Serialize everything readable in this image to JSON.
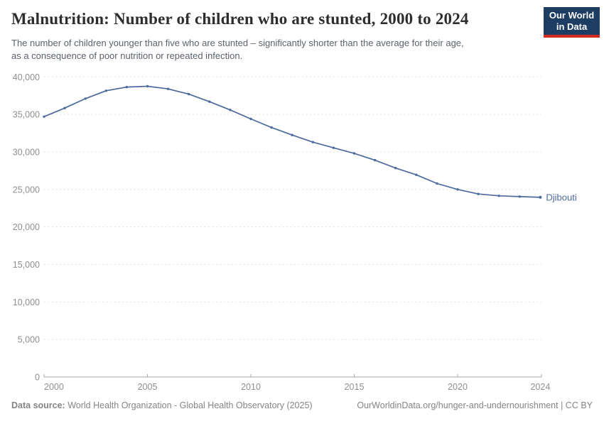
{
  "header": {
    "title": "Malnutrition: Number of children who are stunted, 2000 to 2024",
    "subtitle_line1": "The number of children younger than five who are stunted – significantly shorter than the average for their age,",
    "subtitle_line2": "as a consequence of poor nutrition or repeated infection.",
    "logo": {
      "line1": "Our World",
      "line2": "in Data"
    }
  },
  "footer": {
    "datasource_label": "Data source:",
    "datasource_value": " World Health Organization - Global Health Observatory (2025)",
    "link": "OurWorldinData.org/hunger-and-undernourishment | CC BY"
  },
  "colors": {
    "line": "#4c6a9c",
    "series_label": "#4c6a9c",
    "gridline": "#e0e0e0",
    "axis": "#a8a8a8",
    "tick_label": "#8f8f8f",
    "logo_bg": "#1d3d63",
    "logo_stripe": "#d42b21"
  },
  "chart_data": {
    "type": "line",
    "title": "Malnutrition: Number of children who are stunted, 2000 to 2024",
    "xlabel": "",
    "ylabel": "",
    "x": [
      2000,
      2001,
      2002,
      2003,
      2004,
      2005,
      2006,
      2007,
      2008,
      2009,
      2010,
      2011,
      2012,
      2013,
      2014,
      2015,
      2016,
      2017,
      2018,
      2019,
      2020,
      2021,
      2022,
      2023,
      2024
    ],
    "series": [
      {
        "name": "Djibouti",
        "color": "#4c6a9c",
        "values": [
          34700,
          35850,
          37100,
          38150,
          38650,
          38750,
          38400,
          37700,
          36700,
          35600,
          34400,
          33250,
          32250,
          31300,
          30550,
          29800,
          28900,
          27850,
          26950,
          25800,
          25000,
          24400,
          24150,
          24050,
          23950
        ]
      }
    ],
    "ylim": [
      0,
      40000
    ],
    "yticks": [
      0,
      5000,
      10000,
      15000,
      20000,
      25000,
      30000,
      35000,
      40000
    ],
    "xticks": [
      2000,
      2005,
      2010,
      2015,
      2020,
      2024
    ],
    "grid": "horizontal-dashed",
    "legend": "end-of-line-label"
  }
}
